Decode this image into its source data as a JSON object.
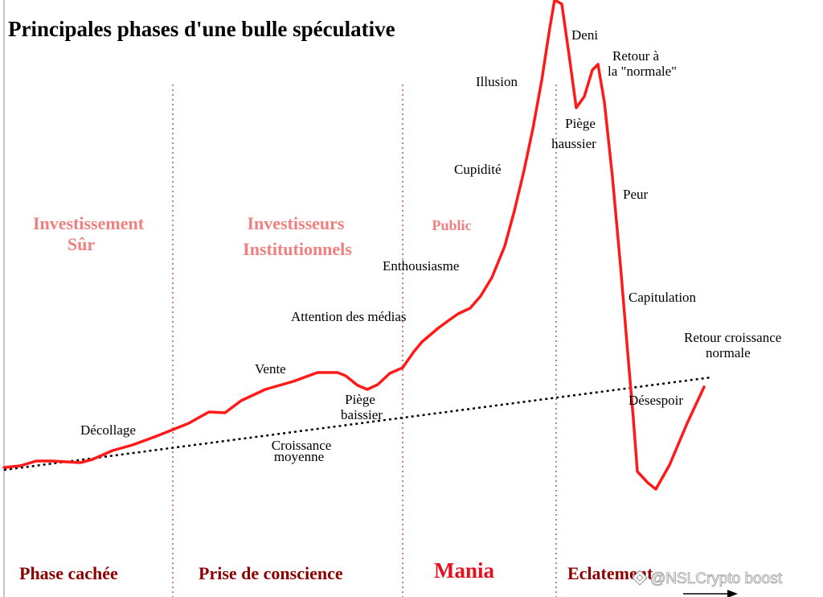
{
  "title": "Principales phases d'une bulle spéculative",
  "colors": {
    "bubble_curve": "#ff1a1a",
    "trend_line": "#000000",
    "phase_divider": "#b05a4a",
    "group_label": "#f08080",
    "phase_label": "#8b0000",
    "mania_label": "#e8101c"
  },
  "groups": {
    "investissement_sur": [
      "Investissement",
      "Sûr"
    ],
    "institutionnels": [
      "Investisseurs",
      "Institutionnels"
    ],
    "public": "Public"
  },
  "labels": {
    "decollage": "Décollage",
    "croissance_moyenne": [
      "Croissance",
      "moyenne"
    ],
    "vente": "Vente",
    "piege_baissier": [
      "Piège",
      "baissier"
    ],
    "attention_medias": "Attention des médias",
    "enthousiasme": "Enthousiasme",
    "cupidite": "Cupidité",
    "illusion": "Illusion",
    "deni": "Deni",
    "retour_normale": [
      "Retour  à",
      "la \"normale\""
    ],
    "piege_haussier": [
      "Piège",
      "haussier"
    ],
    "peur": "Peur",
    "capitulation": "Capitulation",
    "retour_croissance": [
      "Retour croissance",
      "normale"
    ],
    "desespoir": "Désespoir"
  },
  "phases": {
    "cachee": "Phase cachée",
    "prise_conscience": "Prise de conscience",
    "mania": "Mania",
    "eclatement": "Eclatement"
  },
  "watermark": "@NSLCrypto boost",
  "icons": {
    "watermark_logo": "binance-diamond-icon"
  }
}
